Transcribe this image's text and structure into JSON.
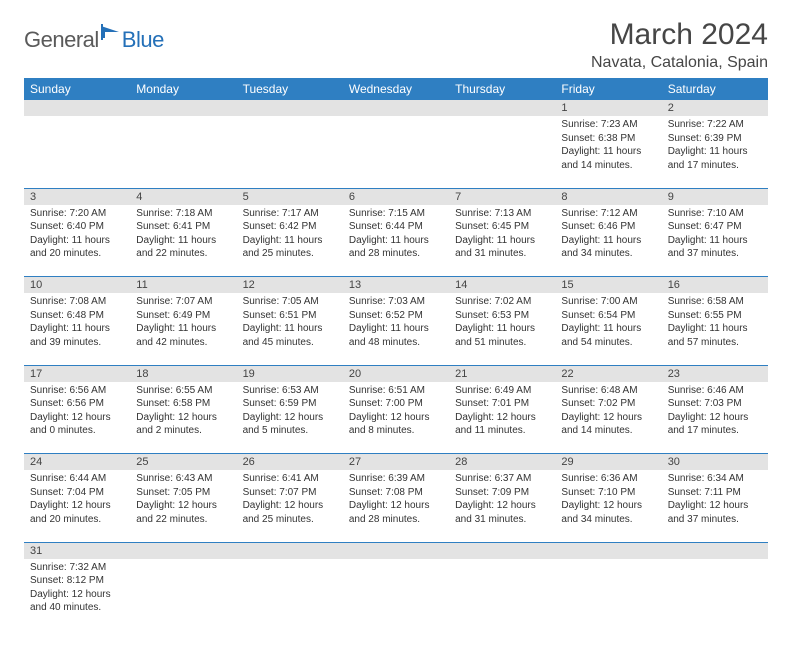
{
  "logo": {
    "part1": "General",
    "part2": "Blue"
  },
  "title": "March 2024",
  "location": "Navata, Catalonia, Spain",
  "header_bg": "#2f7fc2",
  "header_fg": "#ffffff",
  "daynum_bg": "#e3e3e3",
  "rule_color": "#2f7fc2",
  "weekdays": [
    "Sunday",
    "Monday",
    "Tuesday",
    "Wednesday",
    "Thursday",
    "Friday",
    "Saturday"
  ],
  "weeks": [
    [
      null,
      null,
      null,
      null,
      null,
      {
        "n": "1",
        "sr": "7:23 AM",
        "ss": "6:38 PM",
        "dl": "11 hours and 14 minutes."
      },
      {
        "n": "2",
        "sr": "7:22 AM",
        "ss": "6:39 PM",
        "dl": "11 hours and 17 minutes."
      }
    ],
    [
      {
        "n": "3",
        "sr": "7:20 AM",
        "ss": "6:40 PM",
        "dl": "11 hours and 20 minutes."
      },
      {
        "n": "4",
        "sr": "7:18 AM",
        "ss": "6:41 PM",
        "dl": "11 hours and 22 minutes."
      },
      {
        "n": "5",
        "sr": "7:17 AM",
        "ss": "6:42 PM",
        "dl": "11 hours and 25 minutes."
      },
      {
        "n": "6",
        "sr": "7:15 AM",
        "ss": "6:44 PM",
        "dl": "11 hours and 28 minutes."
      },
      {
        "n": "7",
        "sr": "7:13 AM",
        "ss": "6:45 PM",
        "dl": "11 hours and 31 minutes."
      },
      {
        "n": "8",
        "sr": "7:12 AM",
        "ss": "6:46 PM",
        "dl": "11 hours and 34 minutes."
      },
      {
        "n": "9",
        "sr": "7:10 AM",
        "ss": "6:47 PM",
        "dl": "11 hours and 37 minutes."
      }
    ],
    [
      {
        "n": "10",
        "sr": "7:08 AM",
        "ss": "6:48 PM",
        "dl": "11 hours and 39 minutes."
      },
      {
        "n": "11",
        "sr": "7:07 AM",
        "ss": "6:49 PM",
        "dl": "11 hours and 42 minutes."
      },
      {
        "n": "12",
        "sr": "7:05 AM",
        "ss": "6:51 PM",
        "dl": "11 hours and 45 minutes."
      },
      {
        "n": "13",
        "sr": "7:03 AM",
        "ss": "6:52 PM",
        "dl": "11 hours and 48 minutes."
      },
      {
        "n": "14",
        "sr": "7:02 AM",
        "ss": "6:53 PM",
        "dl": "11 hours and 51 minutes."
      },
      {
        "n": "15",
        "sr": "7:00 AM",
        "ss": "6:54 PM",
        "dl": "11 hours and 54 minutes."
      },
      {
        "n": "16",
        "sr": "6:58 AM",
        "ss": "6:55 PM",
        "dl": "11 hours and 57 minutes."
      }
    ],
    [
      {
        "n": "17",
        "sr": "6:56 AM",
        "ss": "6:56 PM",
        "dl": "12 hours and 0 minutes."
      },
      {
        "n": "18",
        "sr": "6:55 AM",
        "ss": "6:58 PM",
        "dl": "12 hours and 2 minutes."
      },
      {
        "n": "19",
        "sr": "6:53 AM",
        "ss": "6:59 PM",
        "dl": "12 hours and 5 minutes."
      },
      {
        "n": "20",
        "sr": "6:51 AM",
        "ss": "7:00 PM",
        "dl": "12 hours and 8 minutes."
      },
      {
        "n": "21",
        "sr": "6:49 AM",
        "ss": "7:01 PM",
        "dl": "12 hours and 11 minutes."
      },
      {
        "n": "22",
        "sr": "6:48 AM",
        "ss": "7:02 PM",
        "dl": "12 hours and 14 minutes."
      },
      {
        "n": "23",
        "sr": "6:46 AM",
        "ss": "7:03 PM",
        "dl": "12 hours and 17 minutes."
      }
    ],
    [
      {
        "n": "24",
        "sr": "6:44 AM",
        "ss": "7:04 PM",
        "dl": "12 hours and 20 minutes."
      },
      {
        "n": "25",
        "sr": "6:43 AM",
        "ss": "7:05 PM",
        "dl": "12 hours and 22 minutes."
      },
      {
        "n": "26",
        "sr": "6:41 AM",
        "ss": "7:07 PM",
        "dl": "12 hours and 25 minutes."
      },
      {
        "n": "27",
        "sr": "6:39 AM",
        "ss": "7:08 PM",
        "dl": "12 hours and 28 minutes."
      },
      {
        "n": "28",
        "sr": "6:37 AM",
        "ss": "7:09 PM",
        "dl": "12 hours and 31 minutes."
      },
      {
        "n": "29",
        "sr": "6:36 AM",
        "ss": "7:10 PM",
        "dl": "12 hours and 34 minutes."
      },
      {
        "n": "30",
        "sr": "6:34 AM",
        "ss": "7:11 PM",
        "dl": "12 hours and 37 minutes."
      }
    ],
    [
      {
        "n": "31",
        "sr": "7:32 AM",
        "ss": "8:12 PM",
        "dl": "12 hours and 40 minutes."
      },
      null,
      null,
      null,
      null,
      null,
      null
    ]
  ],
  "labels": {
    "sunrise": "Sunrise:",
    "sunset": "Sunset:",
    "daylight": "Daylight:"
  }
}
